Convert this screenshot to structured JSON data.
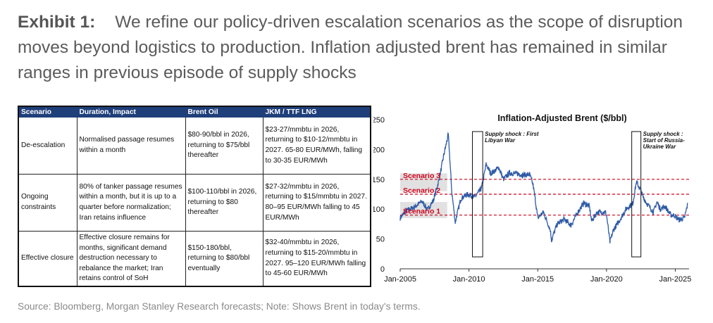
{
  "title": {
    "exhibit": "Exhibit 1:",
    "text": "We refine our policy-driven escalation scenarios as the scope of disruption moves beyond logistics to production. Inflation adjusted brent has remained in similar ranges in previous episode of supply shocks"
  },
  "table": {
    "headers": [
      "Scenario",
      "Duration, Impact",
      "Brent Oil",
      "JKM / TTF LNG"
    ],
    "rows": [
      [
        "De-escalation",
        "Normalised passage resumes within a month",
        "$80-90/bbl in 2026, returning to $75/bbl thereafter",
        "$23-27/mmbtu in 2026, returning to $10-12/mmbtu in 2027. 65-80 EUR/MWh, falling to 30-35 EUR/MWh"
      ],
      [
        "Ongoing constraints",
        "80% of tanker passage resumes within a month, but it is up to a quarter before normalization; Iran retains influence",
        "$100-110/bbl in 2026, returning to $80 thereafter",
        "$27-32/mmbtu in 2026, returning to $15/mmbtu in 2027. 80–95 EUR/MWh falling to 45 EUR/MWh"
      ],
      [
        "Effective closure",
        "Effective closure remains for months, significant demand destruction necessary to rebalance the market; Iran retains control of SoH",
        "$150-180/bbl, returning to $80/bbl eventually",
        "$32-40/mmbtu in 2026, returning to $15-20/mmbtu in 2027. 95–120 EUR/MWh falling to 45-60 EUR/MWh"
      ]
    ]
  },
  "chart_data": {
    "type": "line",
    "title": "Inflation-Adjusted Brent ($/bbl)",
    "xlabel": "",
    "ylabel": "",
    "x_tick_labels": [
      "Jan-2005",
      "Jan-2010",
      "Jan-2015",
      "Jan-2020",
      "Jan-2025"
    ],
    "y_ticks": [
      0,
      50,
      100,
      150,
      200,
      250
    ],
    "ylim": [
      0,
      250
    ],
    "xlim": [
      "2005-01",
      "2026-01"
    ],
    "grid": false,
    "line_color": "#2e5aa6",
    "series": [
      {
        "x": [
          "2005-01",
          "2005-06",
          "2006-01",
          "2006-08",
          "2007-01",
          "2007-06",
          "2007-11",
          "2008-03",
          "2008-07",
          "2008-10",
          "2009-01",
          "2009-06",
          "2009-12",
          "2010-06",
          "2010-12",
          "2011-04",
          "2011-08",
          "2011-12",
          "2012-03",
          "2012-07",
          "2012-12",
          "2013-06",
          "2013-12",
          "2014-06",
          "2014-09",
          "2014-12",
          "2015-01",
          "2015-06",
          "2015-12",
          "2016-01",
          "2016-06",
          "2016-12",
          "2017-06",
          "2017-12",
          "2018-05",
          "2018-10",
          "2018-12",
          "2019-05",
          "2019-12",
          "2020-01",
          "2020-04",
          "2020-07",
          "2020-12",
          "2021-06",
          "2021-12",
          "2022-03",
          "2022-06",
          "2022-09",
          "2022-12",
          "2023-06",
          "2023-09",
          "2023-12",
          "2024-04",
          "2024-09",
          "2024-12",
          "2025-04",
          "2025-09",
          "2025-12"
        ],
        "values": [
          85,
          97,
          103,
          113,
          99,
          115,
          150,
          190,
          225,
          130,
          78,
          118,
          125,
          120,
          135,
          175,
          160,
          165,
          170,
          150,
          160,
          160,
          157,
          158,
          140,
          100,
          85,
          95,
          65,
          48,
          75,
          83,
          73,
          95,
          110,
          105,
          80,
          95,
          95,
          90,
          45,
          65,
          80,
          100,
          110,
          145,
          135,
          120,
          110,
          95,
          112,
          100,
          105,
          90,
          90,
          82,
          85,
          110
        ]
      }
    ],
    "annotations": [
      {
        "text": "Supply shock : First Libyan War",
        "x_range": [
          "2010-04",
          "2011-01"
        ]
      },
      {
        "text": "Supply shock : Start of Russia-Ukraine War",
        "x_range": [
          "2021-11",
          "2022-07"
        ]
      }
    ],
    "reference_lines": [
      {
        "label": "Scenario 3",
        "value": 150,
        "color": "#d0021b"
      },
      {
        "label": "Scenario 2",
        "value": 125,
        "color": "#d0021b"
      },
      {
        "label": "Scenario 1",
        "value": 90,
        "color": "#d0021b"
      }
    ],
    "shaded_bands": [
      {
        "y_range": [
          160,
          130
        ],
        "x_range": [
          "2005-01",
          "2008-06"
        ],
        "color": "#d9d9d9"
      },
      {
        "y_range": [
          112,
          85
        ],
        "x_range": [
          "2005-01",
          "2008-06"
        ],
        "color": "#d9d9d9"
      }
    ]
  },
  "source": "Source: Bloomberg, Morgan Stanley Research forecasts; Note: Shows Brent in today's terms."
}
